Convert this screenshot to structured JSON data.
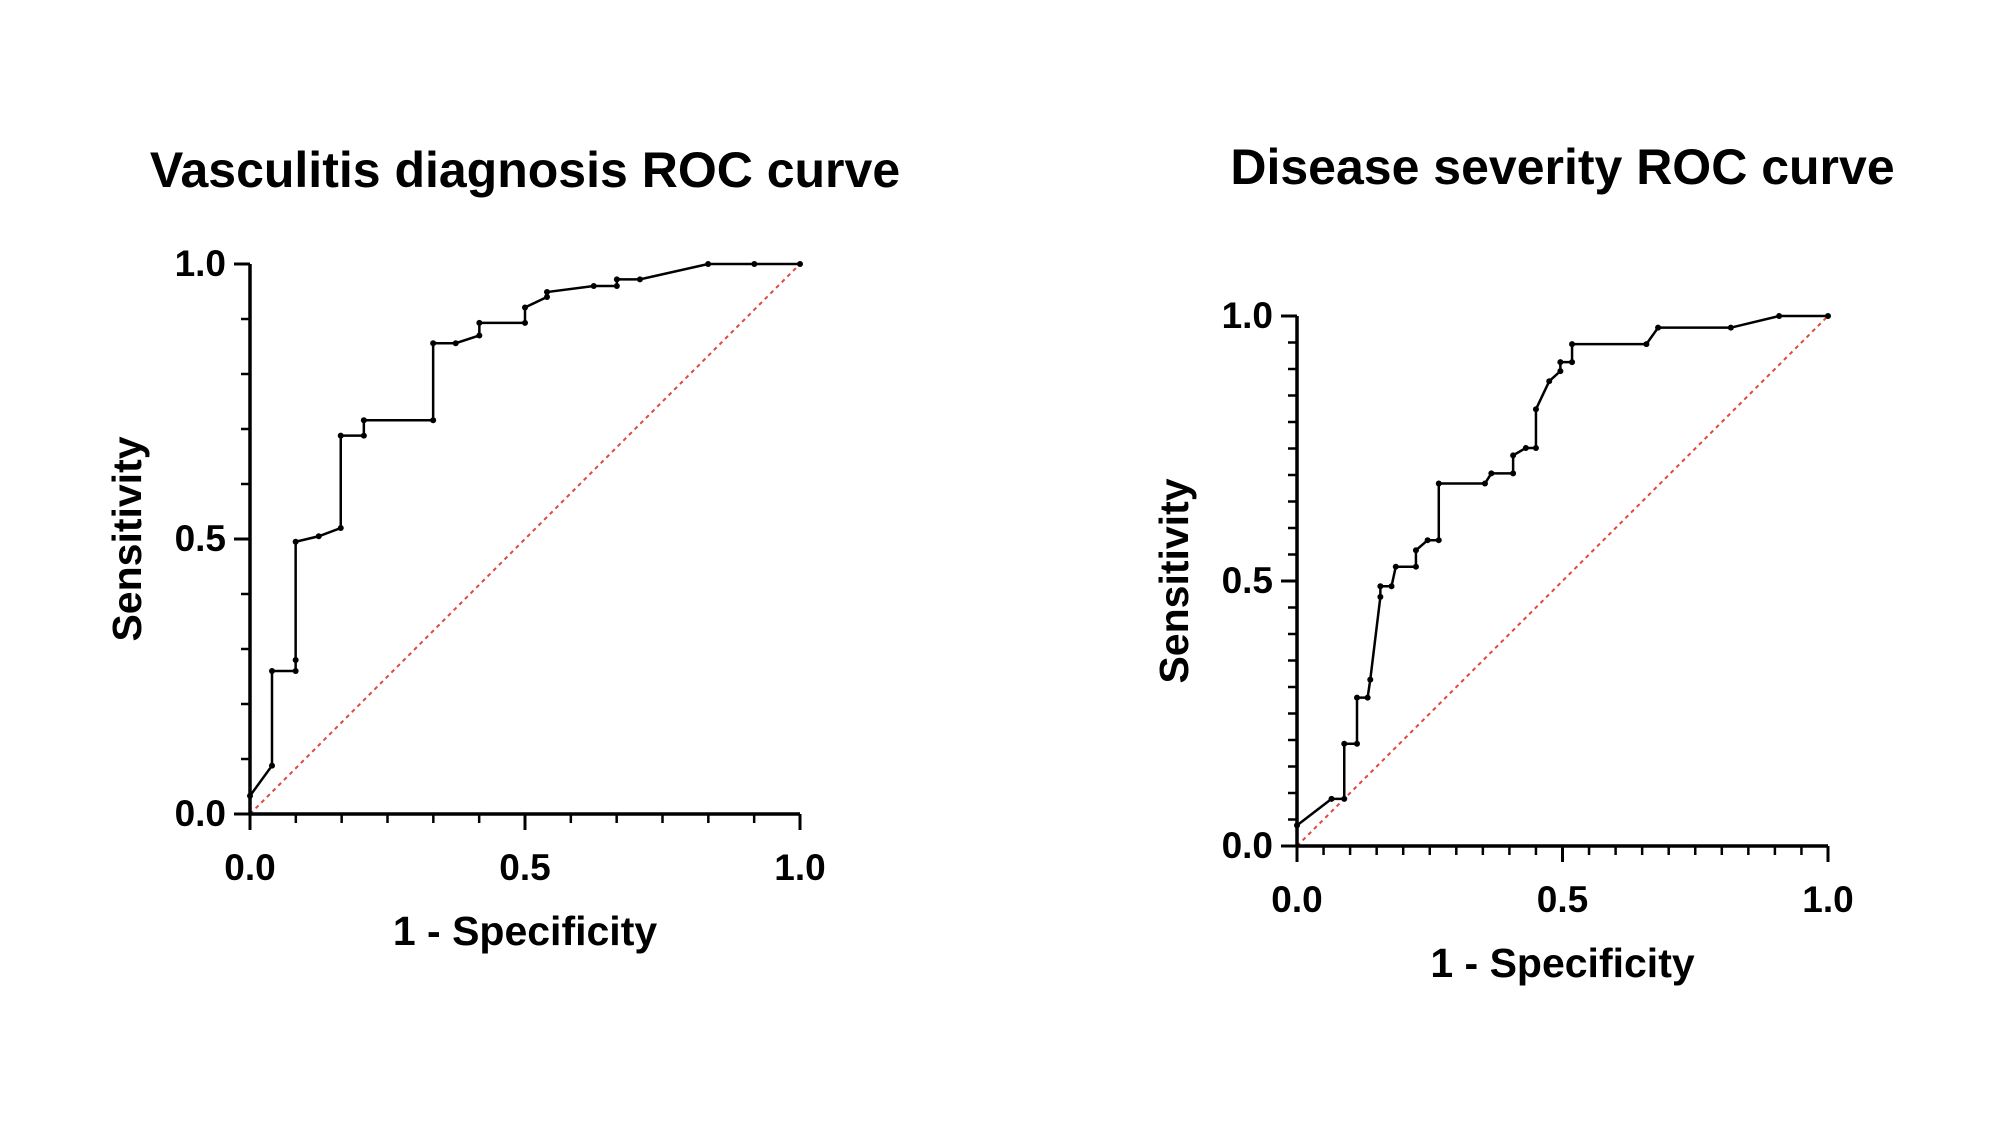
{
  "chart_data": [
    {
      "type": "line",
      "title": "Vasculitis diagnosis ROC curve",
      "x_label": "1 - Specificity",
      "y_label": "Sensitivity",
      "xlim": [
        0,
        1
      ],
      "ylim": [
        0,
        1
      ],
      "xticks": [
        {
          "value": 0,
          "label": "0.0"
        },
        {
          "value": 0.5,
          "label": "0.5"
        },
        {
          "value": 1,
          "label": "1.0"
        }
      ],
      "yticks": [
        {
          "value": 0,
          "label": "0.0"
        },
        {
          "value": 0.5,
          "label": "0.5"
        },
        {
          "value": 1,
          "label": "1.0"
        }
      ],
      "x_minor_count": 12,
      "y_minor_count": 10,
      "diagonal": true,
      "diagonal_color": "#e0483c",
      "x": [
        0,
        0.04,
        0.04,
        0.083,
        0.083,
        0.083,
        0.125,
        0.165,
        0.165,
        0.207,
        0.207,
        0.333,
        0.333,
        0.374,
        0.417,
        0.417,
        0.5,
        0.5,
        0.54,
        0.54,
        0.625,
        0.667,
        0.667,
        0.709,
        0.833,
        0.917,
        1
      ],
      "series": [
        {
          "name": "ROC",
          "color": "#000000",
          "values": [
            0.033,
            0.088,
            0.26,
            0.26,
            0.28,
            0.495,
            0.505,
            0.52,
            0.688,
            0.688,
            0.716,
            0.716,
            0.856,
            0.856,
            0.87,
            0.893,
            0.893,
            0.921,
            0.94,
            0.949,
            0.96,
            0.96,
            0.972,
            0.972,
            1,
            1,
            1
          ]
        }
      ]
    },
    {
      "type": "line",
      "title": "Disease severity ROC curve",
      "x_label": "1 - Specificity",
      "y_label": "Sensitivity",
      "xlim": [
        0,
        1
      ],
      "ylim": [
        0,
        1
      ],
      "xticks": [
        {
          "value": 0,
          "label": "0.0"
        },
        {
          "value": 0.5,
          "label": "0.5"
        },
        {
          "value": 1,
          "label": "1.0"
        }
      ],
      "yticks": [
        {
          "value": 0,
          "label": "0.0"
        },
        {
          "value": 0.5,
          "label": "0.5"
        },
        {
          "value": 1,
          "label": "1.0"
        }
      ],
      "x_minor_count": 20,
      "y_minor_count": 20,
      "diagonal": true,
      "diagonal_color": "#e0483c",
      "x": [
        0,
        0.065,
        0.089,
        0.089,
        0.113,
        0.113,
        0.133,
        0.138,
        0.157,
        0.157,
        0.178,
        0.186,
        0.224,
        0.224,
        0.246,
        0.267,
        0.267,
        0.354,
        0.366,
        0.407,
        0.407,
        0.431,
        0.45,
        0.45,
        0.475,
        0.496,
        0.496,
        0.518,
        0.518,
        0.658,
        0.68,
        0.817,
        0.908,
        1
      ],
      "series": [
        {
          "name": "ROC",
          "color": "#000000",
          "values": [
            0.039,
            0.089,
            0.089,
            0.193,
            0.193,
            0.28,
            0.28,
            0.314,
            0.47,
            0.49,
            0.49,
            0.527,
            0.527,
            0.558,
            0.577,
            0.577,
            0.684,
            0.684,
            0.703,
            0.703,
            0.737,
            0.751,
            0.751,
            0.824,
            0.877,
            0.896,
            0.913,
            0.913,
            0.947,
            0.947,
            0.978,
            0.978,
            1,
            1
          ]
        }
      ]
    }
  ]
}
